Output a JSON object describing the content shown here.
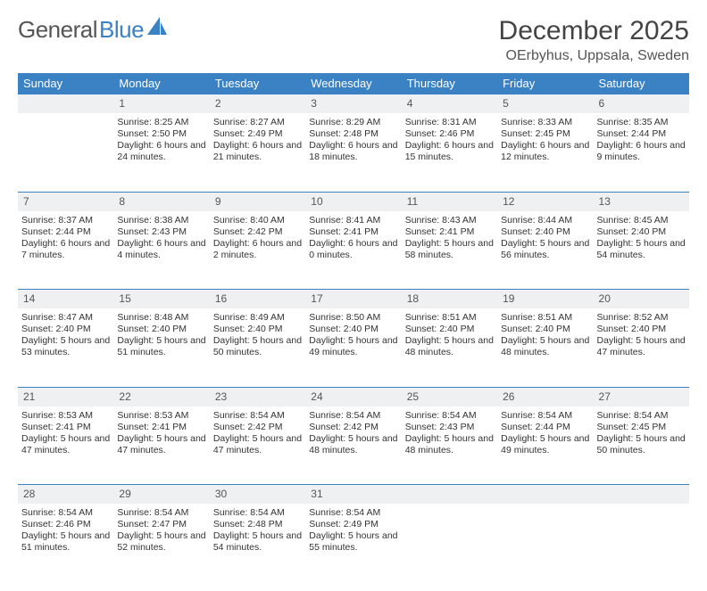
{
  "logo": {
    "text1": "General",
    "text2": "Blue"
  },
  "title": "December 2025",
  "subtitle": "OErbyhus, Uppsala, Sweden",
  "colors": {
    "header_bg": "#3b82c4",
    "header_text": "#ffffff",
    "daynum_bg": "#eef0f2",
    "border": "#3b82c4",
    "page_bg": "#ffffff",
    "text": "#333333"
  },
  "weekdays": [
    "Sunday",
    "Monday",
    "Tuesday",
    "Wednesday",
    "Thursday",
    "Friday",
    "Saturday"
  ],
  "weeks": [
    {
      "nums": [
        "",
        "1",
        "2",
        "3",
        "4",
        "5",
        "6"
      ],
      "cells": [
        {
          "sunrise": "",
          "sunset": "",
          "daylight": ""
        },
        {
          "sunrise": "Sunrise: 8:25 AM",
          "sunset": "Sunset: 2:50 PM",
          "daylight": "Daylight: 6 hours and 24 minutes."
        },
        {
          "sunrise": "Sunrise: 8:27 AM",
          "sunset": "Sunset: 2:49 PM",
          "daylight": "Daylight: 6 hours and 21 minutes."
        },
        {
          "sunrise": "Sunrise: 8:29 AM",
          "sunset": "Sunset: 2:48 PM",
          "daylight": "Daylight: 6 hours and 18 minutes."
        },
        {
          "sunrise": "Sunrise: 8:31 AM",
          "sunset": "Sunset: 2:46 PM",
          "daylight": "Daylight: 6 hours and 15 minutes."
        },
        {
          "sunrise": "Sunrise: 8:33 AM",
          "sunset": "Sunset: 2:45 PM",
          "daylight": "Daylight: 6 hours and 12 minutes."
        },
        {
          "sunrise": "Sunrise: 8:35 AM",
          "sunset": "Sunset: 2:44 PM",
          "daylight": "Daylight: 6 hours and 9 minutes."
        }
      ]
    },
    {
      "nums": [
        "7",
        "8",
        "9",
        "10",
        "11",
        "12",
        "13"
      ],
      "cells": [
        {
          "sunrise": "Sunrise: 8:37 AM",
          "sunset": "Sunset: 2:44 PM",
          "daylight": "Daylight: 6 hours and 7 minutes."
        },
        {
          "sunrise": "Sunrise: 8:38 AM",
          "sunset": "Sunset: 2:43 PM",
          "daylight": "Daylight: 6 hours and 4 minutes."
        },
        {
          "sunrise": "Sunrise: 8:40 AM",
          "sunset": "Sunset: 2:42 PM",
          "daylight": "Daylight: 6 hours and 2 minutes."
        },
        {
          "sunrise": "Sunrise: 8:41 AM",
          "sunset": "Sunset: 2:41 PM",
          "daylight": "Daylight: 6 hours and 0 minutes."
        },
        {
          "sunrise": "Sunrise: 8:43 AM",
          "sunset": "Sunset: 2:41 PM",
          "daylight": "Daylight: 5 hours and 58 minutes."
        },
        {
          "sunrise": "Sunrise: 8:44 AM",
          "sunset": "Sunset: 2:40 PM",
          "daylight": "Daylight: 5 hours and 56 minutes."
        },
        {
          "sunrise": "Sunrise: 8:45 AM",
          "sunset": "Sunset: 2:40 PM",
          "daylight": "Daylight: 5 hours and 54 minutes."
        }
      ]
    },
    {
      "nums": [
        "14",
        "15",
        "16",
        "17",
        "18",
        "19",
        "20"
      ],
      "cells": [
        {
          "sunrise": "Sunrise: 8:47 AM",
          "sunset": "Sunset: 2:40 PM",
          "daylight": "Daylight: 5 hours and 53 minutes."
        },
        {
          "sunrise": "Sunrise: 8:48 AM",
          "sunset": "Sunset: 2:40 PM",
          "daylight": "Daylight: 5 hours and 51 minutes."
        },
        {
          "sunrise": "Sunrise: 8:49 AM",
          "sunset": "Sunset: 2:40 PM",
          "daylight": "Daylight: 5 hours and 50 minutes."
        },
        {
          "sunrise": "Sunrise: 8:50 AM",
          "sunset": "Sunset: 2:40 PM",
          "daylight": "Daylight: 5 hours and 49 minutes."
        },
        {
          "sunrise": "Sunrise: 8:51 AM",
          "sunset": "Sunset: 2:40 PM",
          "daylight": "Daylight: 5 hours and 48 minutes."
        },
        {
          "sunrise": "Sunrise: 8:51 AM",
          "sunset": "Sunset: 2:40 PM",
          "daylight": "Daylight: 5 hours and 48 minutes."
        },
        {
          "sunrise": "Sunrise: 8:52 AM",
          "sunset": "Sunset: 2:40 PM",
          "daylight": "Daylight: 5 hours and 47 minutes."
        }
      ]
    },
    {
      "nums": [
        "21",
        "22",
        "23",
        "24",
        "25",
        "26",
        "27"
      ],
      "cells": [
        {
          "sunrise": "Sunrise: 8:53 AM",
          "sunset": "Sunset: 2:41 PM",
          "daylight": "Daylight: 5 hours and 47 minutes."
        },
        {
          "sunrise": "Sunrise: 8:53 AM",
          "sunset": "Sunset: 2:41 PM",
          "daylight": "Daylight: 5 hours and 47 minutes."
        },
        {
          "sunrise": "Sunrise: 8:54 AM",
          "sunset": "Sunset: 2:42 PM",
          "daylight": "Daylight: 5 hours and 47 minutes."
        },
        {
          "sunrise": "Sunrise: 8:54 AM",
          "sunset": "Sunset: 2:42 PM",
          "daylight": "Daylight: 5 hours and 48 minutes."
        },
        {
          "sunrise": "Sunrise: 8:54 AM",
          "sunset": "Sunset: 2:43 PM",
          "daylight": "Daylight: 5 hours and 48 minutes."
        },
        {
          "sunrise": "Sunrise: 8:54 AM",
          "sunset": "Sunset: 2:44 PM",
          "daylight": "Daylight: 5 hours and 49 minutes."
        },
        {
          "sunrise": "Sunrise: 8:54 AM",
          "sunset": "Sunset: 2:45 PM",
          "daylight": "Daylight: 5 hours and 50 minutes."
        }
      ]
    },
    {
      "nums": [
        "28",
        "29",
        "30",
        "31",
        "",
        "",
        ""
      ],
      "cells": [
        {
          "sunrise": "Sunrise: 8:54 AM",
          "sunset": "Sunset: 2:46 PM",
          "daylight": "Daylight: 5 hours and 51 minutes."
        },
        {
          "sunrise": "Sunrise: 8:54 AM",
          "sunset": "Sunset: 2:47 PM",
          "daylight": "Daylight: 5 hours and 52 minutes."
        },
        {
          "sunrise": "Sunrise: 8:54 AM",
          "sunset": "Sunset: 2:48 PM",
          "daylight": "Daylight: 5 hours and 54 minutes."
        },
        {
          "sunrise": "Sunrise: 8:54 AM",
          "sunset": "Sunset: 2:49 PM",
          "daylight": "Daylight: 5 hours and 55 minutes."
        },
        {
          "sunrise": "",
          "sunset": "",
          "daylight": ""
        },
        {
          "sunrise": "",
          "sunset": "",
          "daylight": ""
        },
        {
          "sunrise": "",
          "sunset": "",
          "daylight": ""
        }
      ]
    }
  ]
}
